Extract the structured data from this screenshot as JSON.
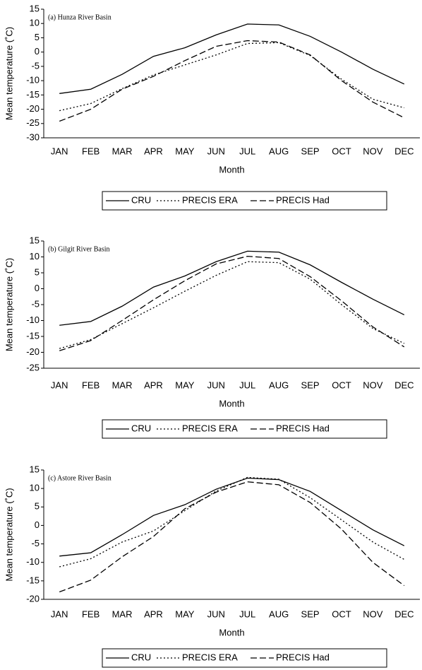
{
  "chart_data": [
    {
      "type": "line",
      "title": "(a) Hunza River Basin",
      "xlabel": "Month",
      "ylabel": "Mean temperature (˚C)",
      "categories": [
        "JAN",
        "FEB",
        "MAR",
        "APR",
        "MAY",
        "JUN",
        "JUL",
        "AUG",
        "SEP",
        "OCT",
        "NOV",
        "DEC"
      ],
      "ylim": [
        -30,
        15
      ],
      "yticks": [
        -30,
        -25,
        -20,
        -15,
        -10,
        -5,
        0,
        5,
        10,
        15
      ],
      "series": [
        {
          "name": "CRU",
          "color": "#000000",
          "style": "solid",
          "values": [
            -14.5,
            -13,
            -7.8,
            -1.5,
            1.5,
            6,
            9.8,
            9.5,
            5.5,
            0,
            -6,
            -11.2
          ]
        },
        {
          "name": "PRECIS ERA",
          "color": "#000000",
          "style": "dotted",
          "values": [
            -20.5,
            -18,
            -12.8,
            -8,
            -4.5,
            -1,
            3,
            3.3,
            -1.2,
            -9.5,
            -16.5,
            -19.5
          ]
        },
        {
          "name": "PRECIS Had",
          "color": "#000000",
          "style": "dashed",
          "values": [
            -24.2,
            -20,
            -13,
            -8.5,
            -3,
            2,
            4,
            3.5,
            -1,
            -10,
            -17.5,
            -23
          ]
        }
      ]
    },
    {
      "type": "line",
      "title": "(b) Gilgit River Basin",
      "xlabel": "Month",
      "ylabel": "Mean temperature (˚C)",
      "categories": [
        "JAN",
        "FEB",
        "MAR",
        "APR",
        "MAY",
        "JUN",
        "JUL",
        "AUG",
        "SEP",
        "OCT",
        "NOV",
        "DEC"
      ],
      "ylim": [
        -25,
        15
      ],
      "yticks": [
        -25,
        -20,
        -15,
        -10,
        -5,
        0,
        5,
        10,
        15
      ],
      "series": [
        {
          "name": "CRU",
          "color": "#000000",
          "style": "solid",
          "values": [
            -11.5,
            -10.3,
            -5.5,
            0.5,
            4,
            8.5,
            11.8,
            11.5,
            7.5,
            2,
            -3.3,
            -8.2
          ]
        },
        {
          "name": "PRECIS ERA",
          "color": "#000000",
          "style": "dotted",
          "values": [
            -18.8,
            -16,
            -11,
            -6,
            -0.8,
            4.2,
            8.5,
            8.2,
            3,
            -5,
            -12.5,
            -17.2
          ]
        },
        {
          "name": "PRECIS Had",
          "color": "#000000",
          "style": "dashed",
          "values": [
            -19.5,
            -16.3,
            -10,
            -3.5,
            2.5,
            7.8,
            10.2,
            9.5,
            3.8,
            -3.8,
            -12,
            -18.3
          ]
        }
      ]
    },
    {
      "type": "line",
      "title": "(c) Astore River Basin",
      "xlabel": "Month",
      "ylabel": "Mean temperature (˚C)",
      "categories": [
        "JAN",
        "FEB",
        "MAR",
        "APR",
        "MAY",
        "JUN",
        "JUL",
        "AUG",
        "SEP",
        "OCT",
        "NOV",
        "DEC"
      ],
      "ylim": [
        -20,
        15
      ],
      "yticks": [
        -20,
        -15,
        -10,
        -5,
        0,
        5,
        10,
        15
      ],
      "series": [
        {
          "name": "CRU",
          "color": "#000000",
          "style": "solid",
          "values": [
            -8.3,
            -7.4,
            -2.5,
            2.7,
            5.6,
            9.8,
            12.8,
            12.4,
            9.2,
            4,
            -1.2,
            -5.5
          ]
        },
        {
          "name": "PRECIS ERA",
          "color": "#000000",
          "style": "dotted",
          "values": [
            -11.2,
            -9,
            -4.5,
            -1.5,
            4,
            9.3,
            13,
            12.5,
            7.5,
            1.5,
            -4.5,
            -9.2
          ]
        },
        {
          "name": "PRECIS Had",
          "color": "#000000",
          "style": "dashed",
          "values": [
            -18,
            -14.8,
            -8.5,
            -3,
            4.5,
            9,
            11.8,
            11,
            6.2,
            -1,
            -10,
            -16.3
          ]
        }
      ]
    }
  ]
}
